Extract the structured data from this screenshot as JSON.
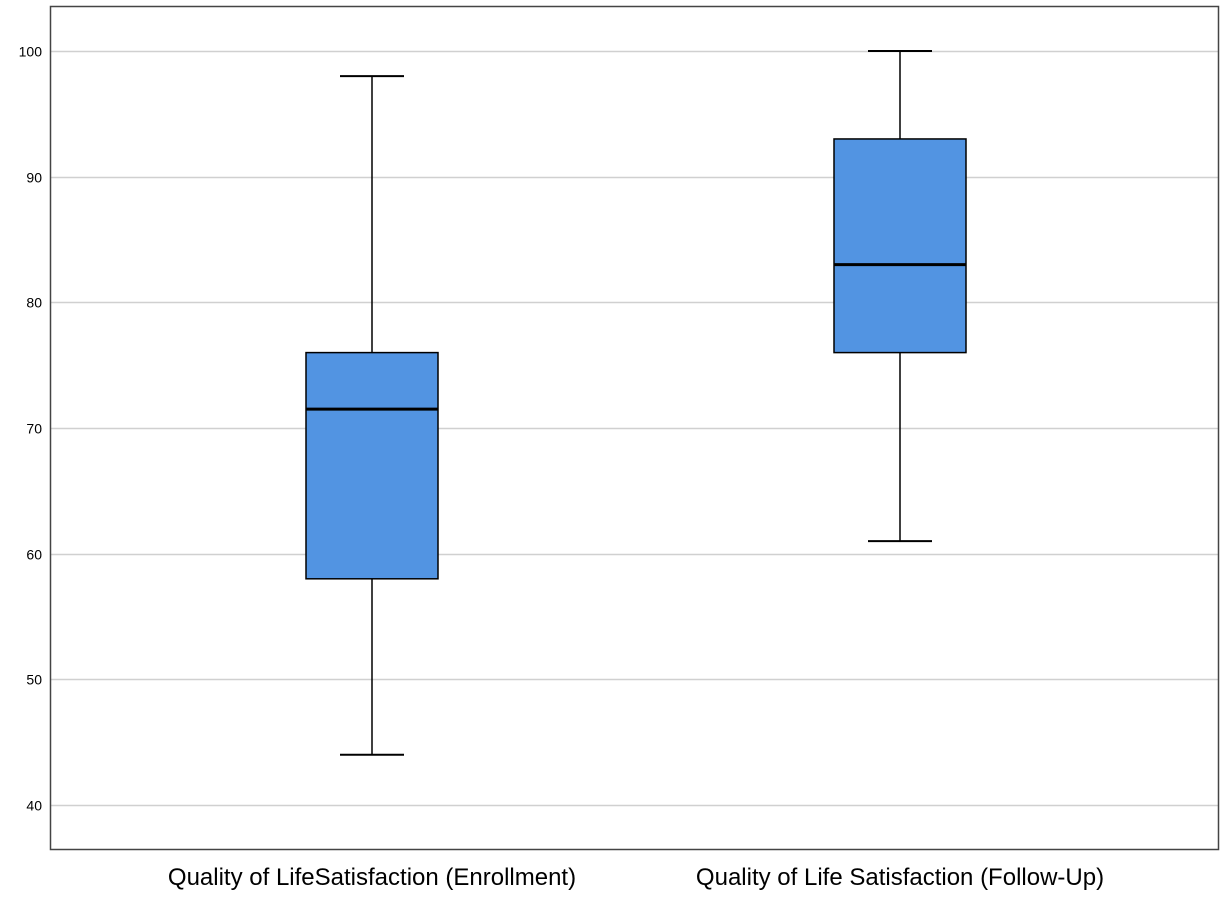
{
  "chart_data": {
    "type": "box",
    "title": "",
    "xlabel": "",
    "ylabel": "",
    "ylim": [
      36.5,
      103.5
    ],
    "yticks": [
      40,
      50,
      60,
      70,
      80,
      90,
      100
    ],
    "grid": true,
    "legend": "none",
    "colors": {
      "box_fill": "#5294E2",
      "outline": "#000000",
      "grid": "#D0D0D0",
      "frame": "#444444"
    },
    "categories": [
      "Quality of LifeSatisfaction (Enrollment)",
      "Quality of Life Satisfaction (Follow-Up)"
    ],
    "boxes": [
      {
        "category": "Quality of LifeSatisfaction (Enrollment)",
        "min": 44,
        "q1": 58,
        "median": 71.5,
        "q3": 76,
        "max": 98
      },
      {
        "category": "Quality of Life Satisfaction (Follow-Up)",
        "min": 61,
        "q1": 76,
        "median": 83,
        "q3": 93,
        "max": 100
      }
    ]
  }
}
